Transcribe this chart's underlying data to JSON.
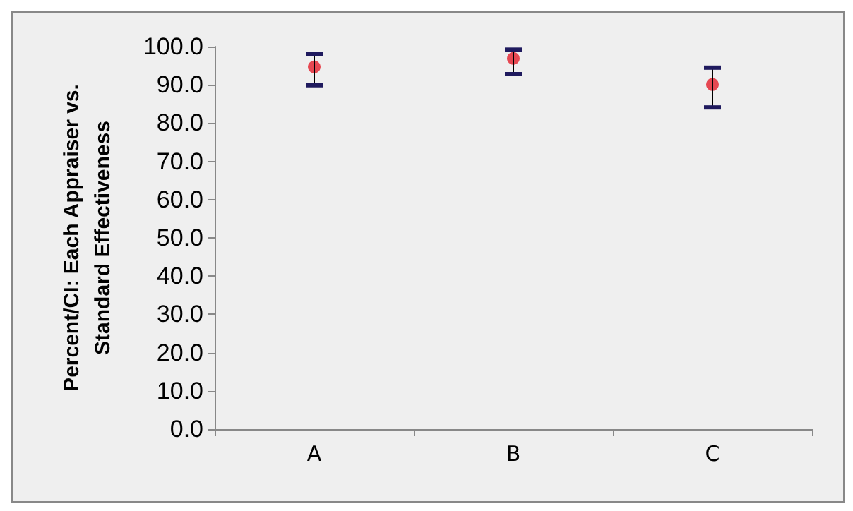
{
  "chart_data": {
    "type": "scatter",
    "ylabel": "Percent/CI: Each Appraiser vs.\nStandard Effectiveness",
    "categories": [
      "A",
      "B",
      "C"
    ],
    "series": [
      {
        "color": "#e31e2a",
        "values": [
          94.7,
          96.9,
          90.1
        ],
        "errors": [
          [
            89.9,
            98.0
          ],
          [
            92.8,
            99.2
          ],
          [
            84.1,
            94.5
          ]
        ]
      }
    ],
    "ylim": [
      0,
      100
    ],
    "yticks": [
      {
        "value": 0,
        "label": "0.0"
      },
      {
        "value": 10,
        "label": "10.0"
      },
      {
        "value": 20,
        "label": "20.0"
      },
      {
        "value": 30,
        "label": "30.0"
      },
      {
        "value": 40,
        "label": "40.0"
      },
      {
        "value": 50,
        "label": "50.0"
      },
      {
        "value": 60,
        "label": "60.0"
      },
      {
        "value": 70,
        "label": "70.0"
      },
      {
        "value": 80,
        "label": "80.0"
      },
      {
        "value": 90,
        "label": "90.0"
      },
      {
        "value": 100,
        "label": "100.0"
      }
    ],
    "grid": false,
    "marker": "circle"
  }
}
